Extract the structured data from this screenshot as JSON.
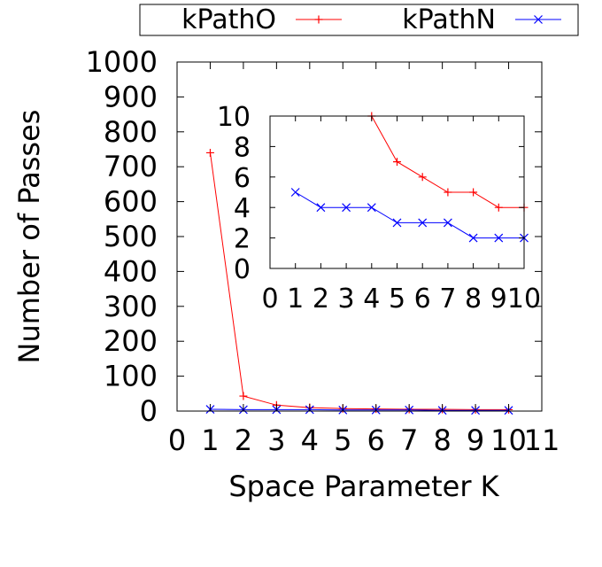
{
  "chart_data": [
    {
      "id": "main",
      "type": "line",
      "xlabel": "Space Parameter K",
      "ylabel": "Number of Passes",
      "xlim": [
        0,
        11
      ],
      "ylim": [
        0,
        1000
      ],
      "xticks": [
        "0",
        "1",
        "2",
        "3",
        "4",
        "5",
        "6",
        "7",
        "8",
        "9",
        "10",
        "11"
      ],
      "yticks": [
        "0",
        "100",
        "200",
        "300",
        "400",
        "500",
        "600",
        "700",
        "800",
        "900",
        "1000"
      ],
      "grid": false,
      "legend": "top",
      "series": [
        {
          "name": "kPathO",
          "color": "#ff0000",
          "marker": "plus",
          "x": [
            1,
            2,
            3,
            4,
            5,
            6,
            7,
            8,
            9,
            10
          ],
          "y": [
            740,
            43,
            17,
            10,
            7,
            6,
            5,
            5,
            4,
            4
          ]
        },
        {
          "name": "kPathN",
          "color": "#0000ff",
          "marker": "cross",
          "x": [
            1,
            2,
            3,
            4,
            5,
            6,
            7,
            8,
            9,
            10
          ],
          "y": [
            5,
            4,
            4,
            4,
            3,
            3,
            3,
            2,
            2,
            2
          ]
        }
      ]
    },
    {
      "id": "inset",
      "type": "line",
      "xlabel": "",
      "ylabel": "",
      "xlim": [
        0,
        10
      ],
      "ylim": [
        0,
        10
      ],
      "xticks": [
        "0",
        "1",
        "2",
        "3",
        "4",
        "5",
        "6",
        "7",
        "8",
        "9",
        "10"
      ],
      "yticks": [
        "0",
        "2",
        "4",
        "6",
        "8",
        "10"
      ],
      "grid": false,
      "series": [
        {
          "name": "kPathO",
          "color": "#ff0000",
          "marker": "plus",
          "x": [
            4,
            5,
            6,
            7,
            8,
            9,
            10
          ],
          "y": [
            10,
            7,
            6,
            5,
            5,
            4,
            4
          ]
        },
        {
          "name": "kPathN",
          "color": "#0000ff",
          "marker": "cross",
          "x": [
            1,
            2,
            3,
            4,
            5,
            6,
            7,
            8,
            9,
            10
          ],
          "y": [
            5,
            4,
            4,
            4,
            3,
            3,
            3,
            2,
            2,
            2
          ]
        }
      ]
    }
  ]
}
